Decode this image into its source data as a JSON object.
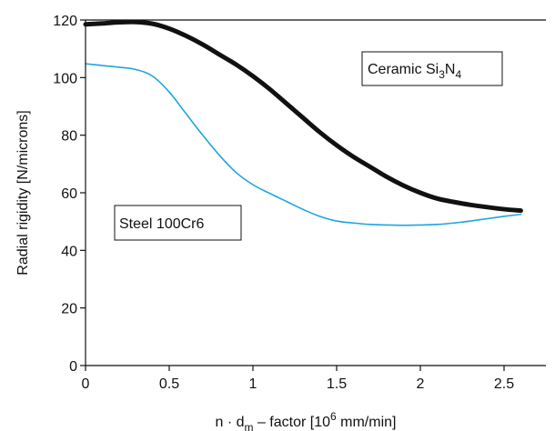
{
  "chart_data": {
    "type": "line",
    "xlabel": {
      "pre": "n · d",
      "sub": "m",
      "mid": " – factor [10",
      "sup": "6",
      "post": " mm/min]"
    },
    "ylabel": "Radial rigidity [N/microns]",
    "xlim": [
      0,
      2.75
    ],
    "ylim": [
      0,
      120
    ],
    "xticks": [
      0,
      0.5,
      1,
      1.5,
      2,
      2.5
    ],
    "xtick_labels": [
      "0",
      "0.5",
      "1",
      "1.5",
      "2",
      "2.5"
    ],
    "yticks": [
      0,
      20,
      40,
      60,
      80,
      100,
      120
    ],
    "ytick_labels": [
      "0",
      "20",
      "40",
      "60",
      "80",
      "100",
      "120"
    ],
    "grid": false,
    "series": [
      {
        "name": "Ceramic Si3N4",
        "label_parts": {
          "pre": "Ceramic Si",
          "sub1": "3",
          "mid": "N",
          "sub2": "4"
        },
        "color": "#111111",
        "width": "thick",
        "points": [
          [
            0,
            118.5
          ],
          [
            0.1,
            118.8
          ],
          [
            0.2,
            119.2
          ],
          [
            0.3,
            119.3
          ],
          [
            0.4,
            118.7
          ],
          [
            0.5,
            117.0
          ],
          [
            0.6,
            114.5
          ],
          [
            0.7,
            111.5
          ],
          [
            0.8,
            108.0
          ],
          [
            0.9,
            104.5
          ],
          [
            1.0,
            100.5
          ],
          [
            1.1,
            96.0
          ],
          [
            1.2,
            91.0
          ],
          [
            1.3,
            86.0
          ],
          [
            1.4,
            81.0
          ],
          [
            1.5,
            76.5
          ],
          [
            1.6,
            72.5
          ],
          [
            1.7,
            69.0
          ],
          [
            1.8,
            65.5
          ],
          [
            1.9,
            62.5
          ],
          [
            2.0,
            60.0
          ],
          [
            2.1,
            58.0
          ],
          [
            2.2,
            56.8
          ],
          [
            2.3,
            55.8
          ],
          [
            2.4,
            55.0
          ],
          [
            2.5,
            54.3
          ],
          [
            2.6,
            53.8
          ]
        ]
      },
      {
        "name": "Steel 100Cr6",
        "color": "#1ea5dc",
        "width": "thin",
        "points": [
          [
            0,
            104.8
          ],
          [
            0.1,
            104.2
          ],
          [
            0.2,
            103.6
          ],
          [
            0.3,
            102.8
          ],
          [
            0.4,
            100.5
          ],
          [
            0.5,
            95.0
          ],
          [
            0.6,
            87.5
          ],
          [
            0.7,
            80.0
          ],
          [
            0.8,
            73.0
          ],
          [
            0.9,
            67.0
          ],
          [
            1.0,
            62.8
          ],
          [
            1.1,
            59.8
          ],
          [
            1.2,
            57.0
          ],
          [
            1.3,
            54.2
          ],
          [
            1.4,
            51.8
          ],
          [
            1.5,
            50.2
          ],
          [
            1.6,
            49.5
          ],
          [
            1.7,
            49.0
          ],
          [
            1.8,
            48.8
          ],
          [
            1.9,
            48.7
          ],
          [
            2.0,
            48.8
          ],
          [
            2.1,
            49.0
          ],
          [
            2.2,
            49.5
          ],
          [
            2.3,
            50.2
          ],
          [
            2.4,
            51.0
          ],
          [
            2.5,
            51.8
          ],
          [
            2.6,
            52.5
          ]
        ]
      }
    ]
  }
}
